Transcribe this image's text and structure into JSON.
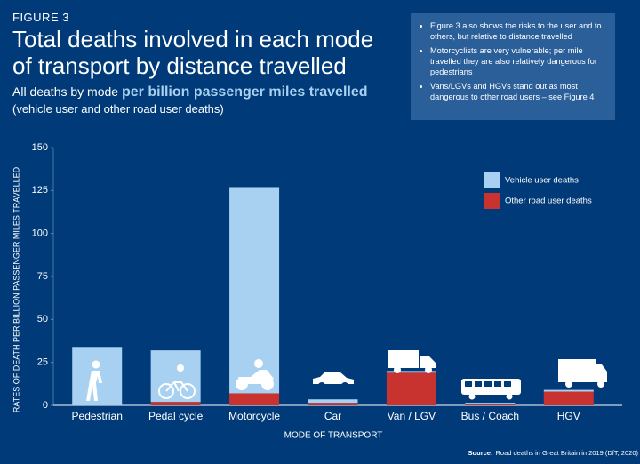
{
  "chart_data": {
    "type": "stacked-bar",
    "figure_label": "FIGURE 3",
    "title_lines": [
      "Total deaths involved in each mode",
      "of transport by distance travelled"
    ],
    "subtitle": "All deaths by mode",
    "subtitle_emphasis": "per billion passenger miles travelled",
    "subtitle_note": "(vehicle user and other road user deaths)",
    "notes": [
      "Figure 3 also shows the risks to the user and to others, but relative to distance travelled",
      "Motorcyclists are very vulnerable; per mile travelled they are also relatively dangerous for pedestrians",
      "Vans/LGVs and HGVs stand out as most dangerous to other road users – see Figure 4"
    ],
    "y_label": "RATES OF DEATH PER BILLION PASSENGER MILES TRAVELLED",
    "x_label": "MODE OF TRANSPORT",
    "source_label": "Source:",
    "source": "Road deaths in Great Britain in 2019 (DfT, 2020)",
    "categories": [
      "Pedestrian",
      "Pedal cycle",
      "Motorcycle",
      "Car",
      "Van / LGV",
      "Bus / Coach",
      "HGV"
    ],
    "series": [
      {
        "name": "Vehicle user deaths",
        "color": "#a8d1f1",
        "values": [
          34,
          30,
          120,
          2,
          1,
          0.5,
          1
        ]
      },
      {
        "name": "Other road user deaths",
        "color": "#c8322f",
        "values": [
          0,
          2,
          7,
          1.5,
          19,
          1,
          8
        ]
      }
    ],
    "ylim": [
      0,
      150
    ],
    "yticks": [
      0,
      25,
      50,
      75,
      100,
      125,
      150
    ],
    "grid": false,
    "legend": "upper right"
  }
}
